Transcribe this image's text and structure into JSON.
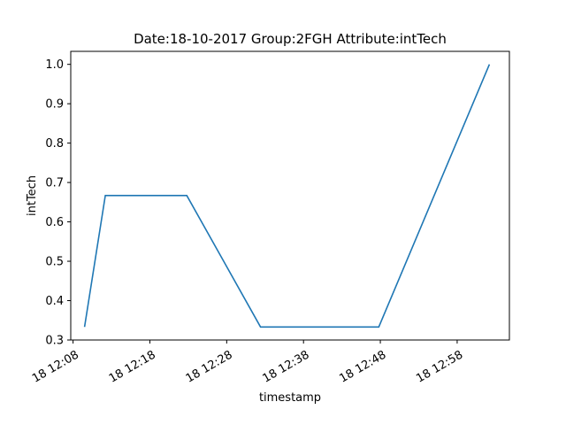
{
  "chart_data": {
    "type": "line",
    "title": "Date:18-10-2017  Group:2FGH Attribute:intTech",
    "xlabel": "timestamp",
    "ylabel": "intTech",
    "x_tick_labels": [
      "18 12:08",
      "18 12:18",
      "18 12:28",
      "18 12:38",
      "18 12:48",
      "18 12:58"
    ],
    "x_tick_minutes": [
      8,
      18,
      28,
      38,
      48,
      58
    ],
    "y_ticks": [
      0.3,
      0.4,
      0.5,
      0.6,
      0.7,
      0.8,
      0.9,
      1.0
    ],
    "y_tick_labels": [
      "0.3",
      "0.4",
      "0.5",
      "0.6",
      "0.7",
      "0.8",
      "0.9",
      "1.0"
    ],
    "xlim_minutes": [
      7.7,
      64.8
    ],
    "ylim": [
      0.3,
      1.033
    ],
    "grid": false,
    "series": [
      {
        "color": "#1f77b4",
        "x_minutes": [
          9.5,
          12.2,
          22.8,
          32.4,
          47.8,
          62.2
        ],
        "values": [
          0.333,
          0.667,
          0.667,
          0.333,
          0.333,
          1.0
        ]
      }
    ]
  }
}
